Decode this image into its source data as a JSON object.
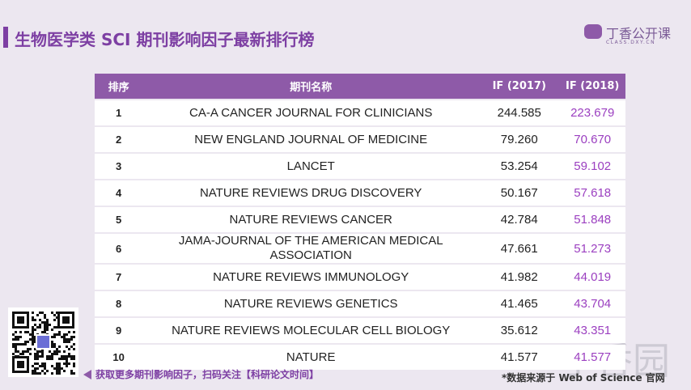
{
  "header": {
    "title": "生物医学类 SCI 期刊影响因子最新排行榜",
    "logo": "丁香公开课",
    "logo_sub": "CLASS.DXY.CN"
  },
  "table": {
    "columns": [
      "排序",
      "期刊名称",
      "IF (2017)",
      "IF (2018)"
    ],
    "rows": [
      [
        "1",
        "CA-A CANCER JOURNAL FOR CLINICIANS",
        "244.585",
        "223.679"
      ],
      [
        "2",
        "NEW ENGLAND JOURNAL OF MEDICINE",
        "79.260",
        "70.670"
      ],
      [
        "3",
        "LANCET",
        "53.254",
        "59.102"
      ],
      [
        "4",
        "NATURE REVIEWS DRUG DISCOVERY",
        "50.167",
        "57.618"
      ],
      [
        "5",
        "NATURE REVIEWS CANCER",
        "42.784",
        "51.848"
      ],
      [
        "6",
        "JAMA-JOURNAL OF THE AMERICAN MEDICAL ASSOCIATION",
        "47.661",
        "51.273"
      ],
      [
        "7",
        "NATURE REVIEWS IMMUNOLOGY",
        "41.982",
        "44.019"
      ],
      [
        "8",
        "NATURE REVIEWS GENETICS",
        "41.465",
        "43.704"
      ],
      [
        "9",
        "NATURE REVIEWS MOLECULAR CELL BIOLOGY",
        "35.612",
        "43.351"
      ],
      [
        "10",
        "NATURE",
        "41.577",
        "41.577"
      ]
    ]
  },
  "footer": {
    "qr_caption": "获取更多期刊影响因子，扫码关注【科研论文时间】",
    "source": "*数据来源于 Web of Science 官网",
    "watermark": "丁香园"
  }
}
